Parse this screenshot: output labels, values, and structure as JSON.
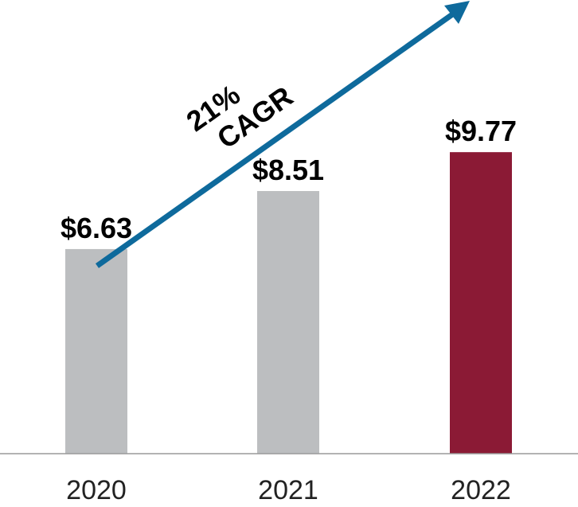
{
  "chart_data": {
    "type": "bar",
    "categories": [
      "2020",
      "2021",
      "2022"
    ],
    "values": [
      6.63,
      8.51,
      9.77
    ],
    "value_labels": [
      "$6.63",
      "$8.51",
      "$9.77"
    ],
    "bar_colors": [
      "#bcbec0",
      "#bcbec0",
      "#8b1a35"
    ],
    "title": "",
    "xlabel": "",
    "ylabel": "",
    "ylim": [
      0,
      14.7
    ],
    "grid": false,
    "annotation": {
      "line1": "21%",
      "line2": "CAGR",
      "arrow_color": "#0e6a9c"
    }
  }
}
